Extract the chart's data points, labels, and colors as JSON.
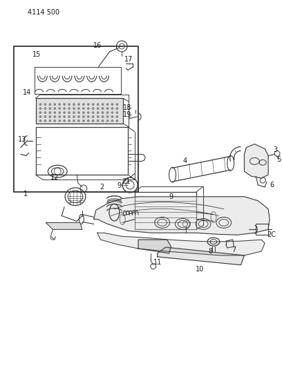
{
  "header": "4114 500",
  "bg": "#ffffff",
  "lc": "#3a3a3a",
  "tc": "#1a1a1a",
  "figsize": [
    4.08,
    5.33
  ],
  "dpi": 100
}
